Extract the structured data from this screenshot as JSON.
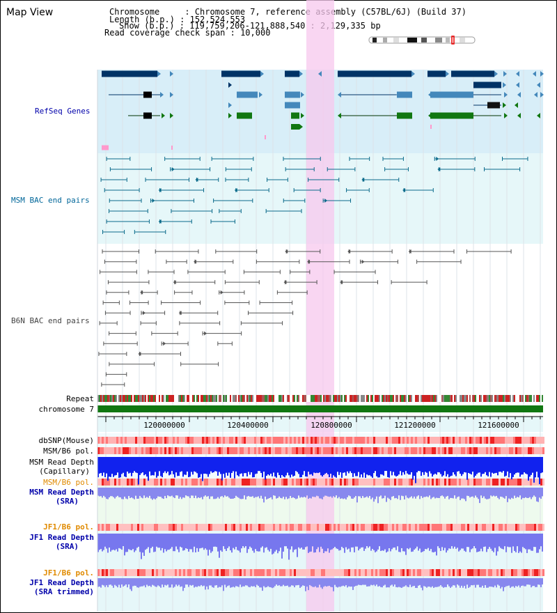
{
  "page": {
    "title": "Map View",
    "info": {
      "chromosome": "Chromosome     : Chromosome 7, reference assembly (C57BL/6J) (Build 37)",
      "length": "Length (b.p.) : 152,524,553",
      "show": "Show (b.p.) : 119,759,206-121,888,540 : 2,129,335 bp",
      "coverage": "Read coverage check span : 10,000"
    }
  },
  "tracks": {
    "refseq": {
      "label": "RefSeq Genes",
      "color": "#0000aa"
    },
    "msm_bac": {
      "label": "MSM BAC end pairs",
      "color": "#006699"
    },
    "b6n_bac": {
      "label": "B6N BAC end pairs",
      "color": "#555555"
    },
    "repeat": {
      "label": "Repeat"
    },
    "chromosome": {
      "label": "chromosome 7"
    },
    "dbsnp": {
      "label": "dbSNP(Mouse)"
    },
    "msm_b6_pol_1": {
      "label": "MSM/B6 pol."
    },
    "msm_depth_cap": {
      "label1": "MSM Read Depth",
      "label2": "(Capillary)"
    },
    "msm_b6_pol_2": {
      "label": "MSM/B6 pol.",
      "color": "#e08a00"
    },
    "msm_depth_sra": {
      "label1": "MSM Read Depth",
      "label2": "(SRA)",
      "color": "#0000aa"
    },
    "jf1_b6_pol_1": {
      "label": "JF1/B6 pol.",
      "color": "#e08a00"
    },
    "jf1_depth_sra": {
      "label1": "JF1 Read Depth",
      "label2": "(SRA)",
      "color": "#0000aa"
    },
    "jf1_b6_pol_2": {
      "label": "JF1/B6 pol.",
      "color": "#e08a00"
    },
    "jf1_depth_trim": {
      "label1": "JF1 Read Depth",
      "label2": "(SRA trimmed)",
      "color": "#0000aa"
    }
  },
  "axis": {
    "ticks": [
      "120000000",
      "120400000",
      "120800000",
      "121200000",
      "121600000"
    ]
  }
}
